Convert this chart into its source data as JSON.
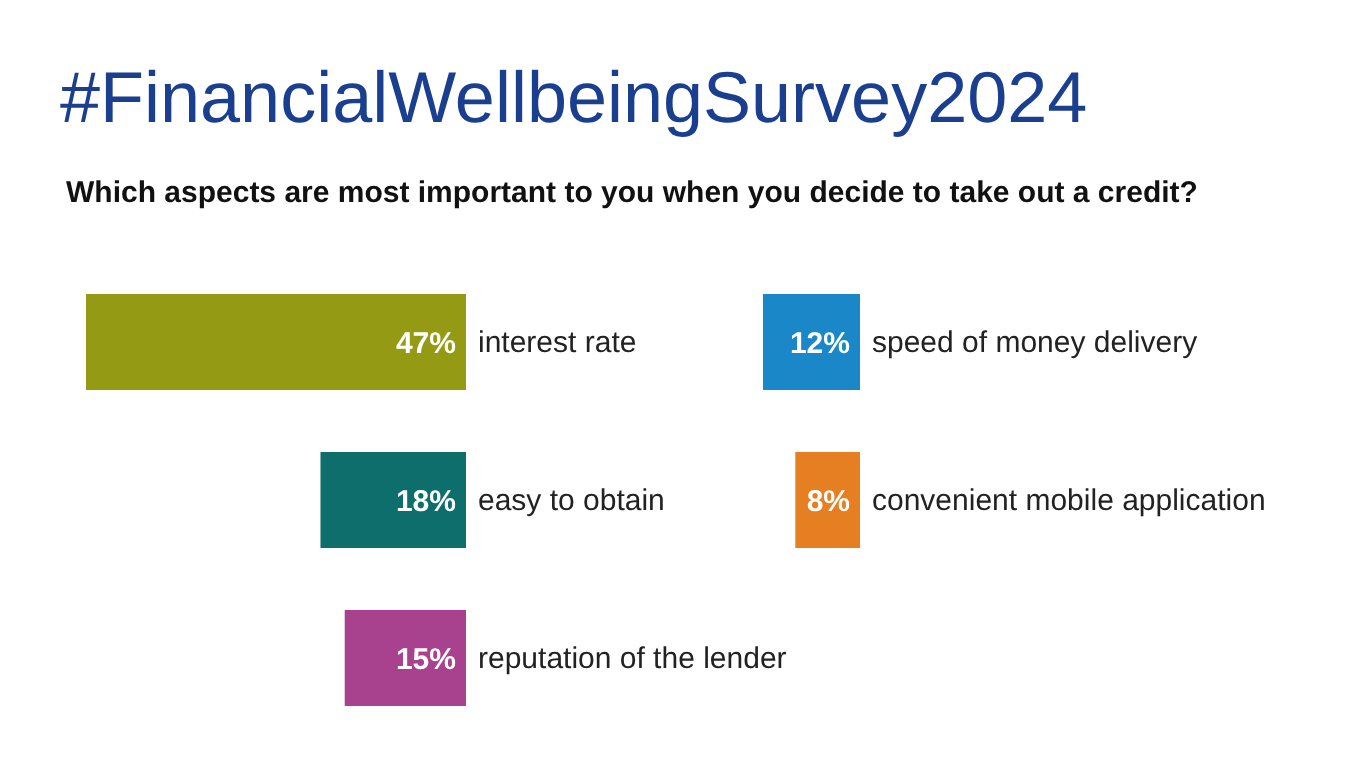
{
  "chart_data": [
    {
      "type": "bar",
      "orientation": "horizontal",
      "title": "#FinancialWellbeingSurvey2024",
      "subtitle": "Which aspects are most important to you when you decide to take out a credit?",
      "categories": [
        "interest rate",
        "easy to obtain",
        "reputation of the lender"
      ],
      "values": [
        47,
        18,
        15
      ],
      "colors": [
        "#959a14",
        "#0e6e6b",
        "#a8418e"
      ],
      "value_labels": [
        "47%",
        "18%",
        "15%"
      ]
    },
    {
      "type": "bar",
      "orientation": "horizontal",
      "categories": [
        "speed of money delivery",
        "convenient mobile application"
      ],
      "values": [
        12,
        8
      ],
      "colors": [
        "#1a87c8",
        "#e67e22"
      ],
      "value_labels": [
        "12%",
        "8%"
      ]
    }
  ]
}
